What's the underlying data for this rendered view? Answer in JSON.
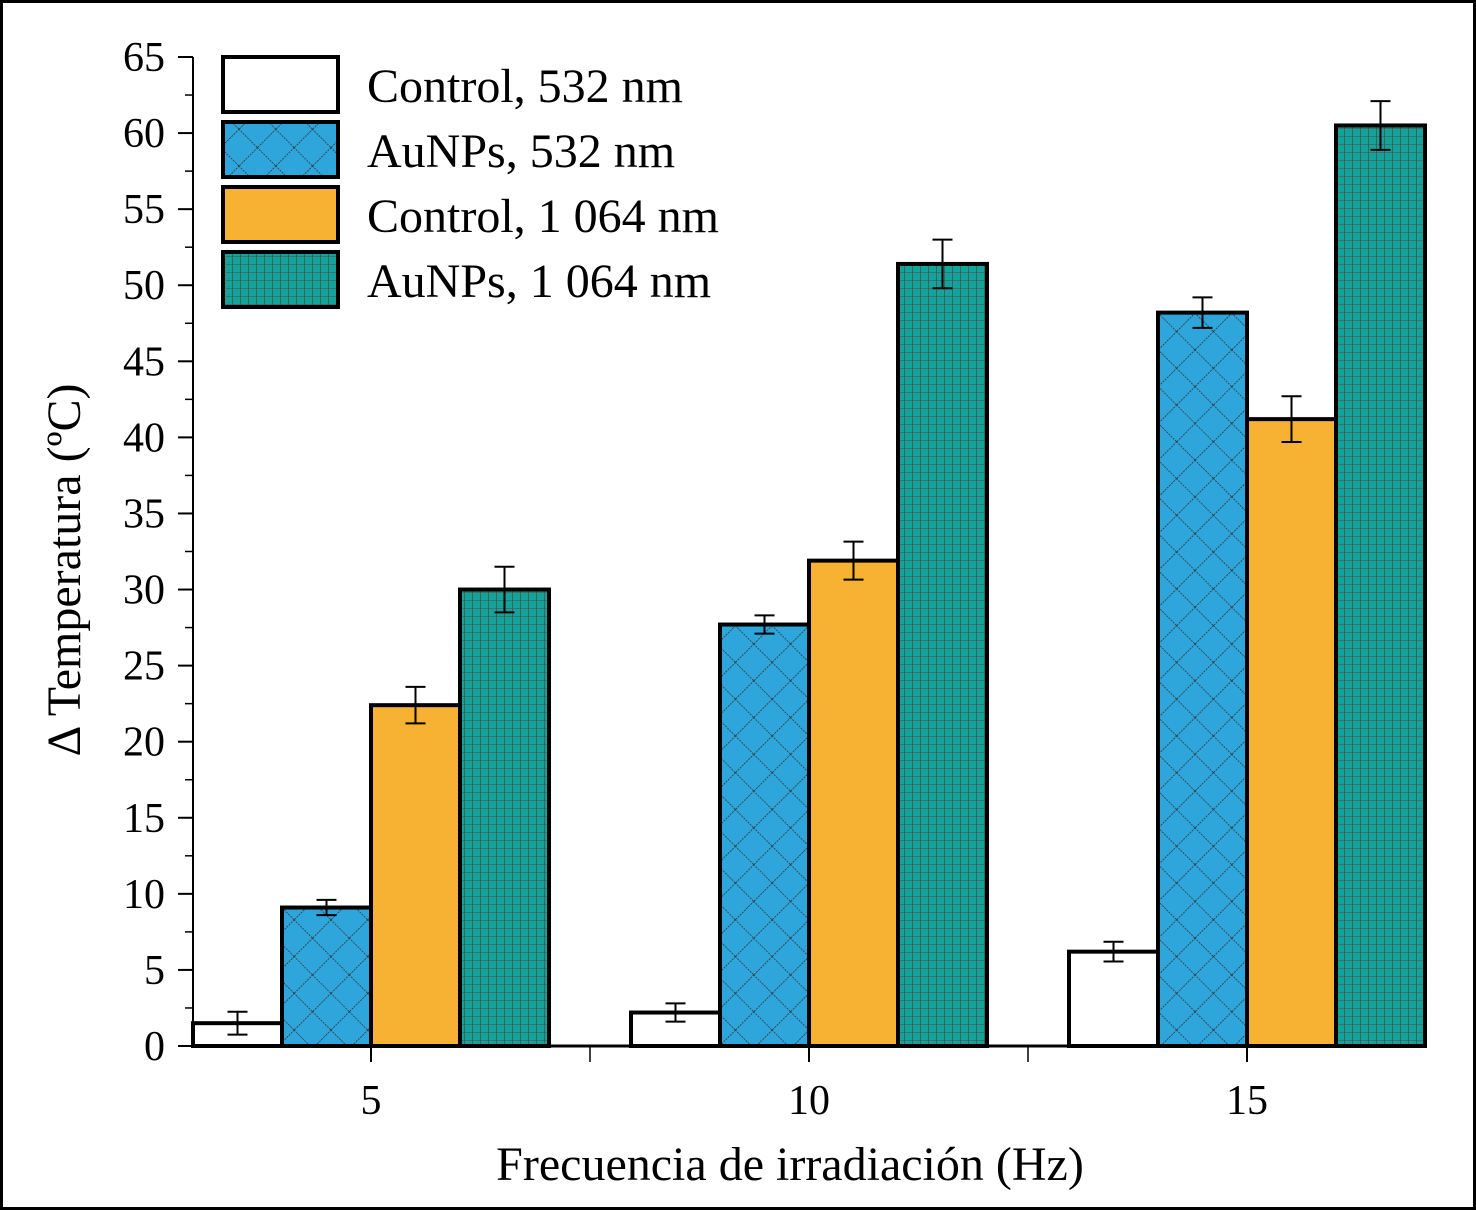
{
  "chart_data": {
    "type": "bar",
    "title": "",
    "xlabel": "Frecuencia de irradiación (Hz)",
    "ylabel": "Δ Temperatura (ºC)",
    "categories": [
      "5",
      "10",
      "15"
    ],
    "ylim": [
      0,
      65
    ],
    "yticks": [
      "0",
      "5",
      "10",
      "15",
      "20",
      "25",
      "30",
      "35",
      "40",
      "45",
      "50",
      "55",
      "60",
      "65"
    ],
    "grid": false,
    "legend_position": "top-left",
    "series": [
      {
        "name": "Control, 532 nm",
        "values": [
          1.5,
          2.2,
          6.2
        ],
        "errors": [
          0.75,
          0.6,
          0.65
        ],
        "color": "#ffffff",
        "pattern": "none"
      },
      {
        "name": "AuNPs, 532 nm",
        "values": [
          9.1,
          27.7,
          48.2
        ],
        "errors": [
          0.5,
          0.6,
          1.0
        ],
        "color": "#2ea6dc",
        "pattern": "crosshatch"
      },
      {
        "name": "Control, 1 064 nm",
        "values": [
          22.4,
          31.9,
          41.2
        ],
        "errors": [
          1.2,
          1.25,
          1.5
        ],
        "color": "#f7b133",
        "pattern": "none"
      },
      {
        "name": "AuNPs, 1 064 nm",
        "values": [
          30.0,
          51.4,
          60.5
        ],
        "errors": [
          1.5,
          1.6,
          1.6
        ],
        "color": "#14a39a",
        "pattern": "grid"
      }
    ]
  }
}
